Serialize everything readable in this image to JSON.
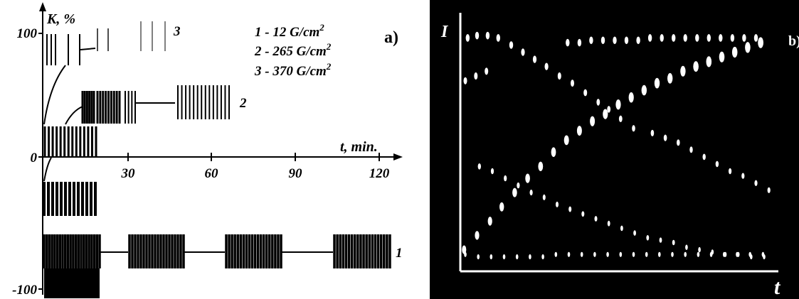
{
  "chart_data": [
    {
      "type": "bar",
      "panel_label": "a)",
      "ylabel": "K, %",
      "xlabel": "t, min.",
      "x_ticks": [
        "30",
        "60",
        "90",
        "120"
      ],
      "y_ticks": [
        "100",
        "0",
        "-100"
      ],
      "xlim": [
        0,
        125
      ],
      "legend": [
        {
          "number": "1",
          "text": "12 G/cm",
          "sup": "2"
        },
        {
          "number": "2",
          "text": "265 G/cm",
          "sup": "2"
        },
        {
          "number": "3",
          "text": "370 G/cm",
          "sup": "2"
        }
      ],
      "curve_labels": [
        "1",
        "2",
        "3"
      ]
    },
    {
      "type": "scatter",
      "panel_label": "b)",
      "ylabel": "I",
      "xlabel": "t",
      "series": [
        {
          "x": [
            0.5,
            1.3,
            2.2,
            3.1,
            4.2,
            5.2,
            6.2,
            7.2,
            8.3,
            9.4,
            10.5,
            11.6,
            12.5,
            13.5,
            14.6
          ],
          "y": [
            0.96,
            0.97,
            0.97,
            0.96,
            0.93,
            0.9,
            0.87,
            0.84,
            0.8,
            0.77,
            0.73,
            0.69,
            0.66,
            0.62,
            0.58
          ]
        },
        {
          "x": [
            9.0,
            10.0,
            11.0,
            12.0,
            13.0,
            14.0,
            15.0,
            16.0,
            17.0,
            18.0,
            19.0,
            20.0,
            21.0,
            22.0,
            23.0,
            24.0,
            25.0
          ],
          "y": [
            0.94,
            0.94,
            0.95,
            0.95,
            0.95,
            0.95,
            0.95,
            0.96,
            0.96,
            0.96,
            0.96,
            0.96,
            0.96,
            0.96,
            0.96,
            0.96,
            0.96
          ]
        },
        {
          "x": [
            0.3,
            1.2,
            2.1
          ],
          "y": [
            0.78,
            0.8,
            0.82
          ]
        },
        {
          "x": [
            0.2,
            1.3,
            2.4,
            3.4,
            4.5,
            5.6,
            6.7,
            7.8,
            8.9,
            10.0,
            11.1,
            12.2,
            13.3,
            14.4,
            15.5,
            16.6,
            17.7,
            18.8,
            19.9,
            21.0,
            22.1,
            23.2,
            24.3,
            25.4
          ],
          "y": [
            0.07,
            0.13,
            0.19,
            0.25,
            0.31,
            0.37,
            0.42,
            0.48,
            0.53,
            0.57,
            0.61,
            0.64,
            0.68,
            0.71,
            0.74,
            0.77,
            0.79,
            0.82,
            0.84,
            0.86,
            0.88,
            0.9,
            0.92,
            0.94
          ]
        },
        {
          "x": [
            1.5,
            2.6,
            3.7,
            4.8,
            5.9,
            7.0,
            8.1,
            9.2,
            10.3,
            11.4,
            12.5,
            13.6,
            14.7,
            15.8,
            16.9,
            18.0,
            19.1,
            20.2,
            21.3,
            22.4,
            23.5,
            24.6,
            25.7
          ],
          "y": [
            0.42,
            0.4,
            0.37,
            0.34,
            0.31,
            0.29,
            0.26,
            0.24,
            0.22,
            0.2,
            0.18,
            0.16,
            0.14,
            0.12,
            0.11,
            0.1,
            0.08,
            0.07,
            0.06,
            0.05,
            0.05,
            0.04,
            0.04
          ]
        },
        {
          "x": [
            16.2,
            17.3,
            18.4,
            19.5,
            20.6,
            21.7,
            22.8,
            23.9,
            25.0,
            26.1
          ],
          "y": [
            0.56,
            0.54,
            0.52,
            0.49,
            0.46,
            0.43,
            0.4,
            0.38,
            0.35,
            0.32
          ]
        },
        {
          "x": [
            0.3,
            1.4,
            2.5,
            3.6,
            4.7,
            5.8,
            6.9,
            8.0,
            9.1,
            10.2,
            11.3,
            12.4,
            13.5,
            14.6,
            15.7,
            16.8,
            17.9,
            19.0,
            20.1,
            21.2,
            22.3,
            23.4,
            24.5,
            25.6
          ],
          "y": [
            0.05,
            0.04,
            0.04,
            0.04,
            0.04,
            0.04,
            0.04,
            0.05,
            0.05,
            0.05,
            0.05,
            0.05,
            0.05,
            0.05,
            0.05,
            0.05,
            0.05,
            0.05,
            0.05,
            0.05,
            0.05,
            0.05,
            0.05,
            0.05
          ]
        }
      ]
    }
  ]
}
